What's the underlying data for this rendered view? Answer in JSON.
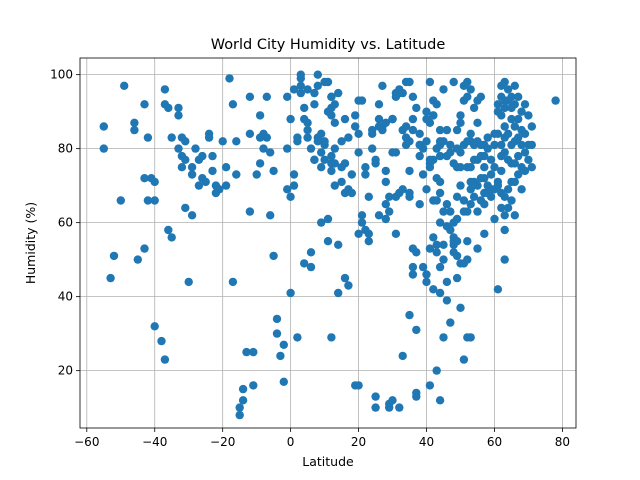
{
  "chart_data": {
    "type": "scatter",
    "title": "World City Humidity vs. Latitude",
    "xlabel": "Latitude",
    "ylabel": "Humidity (%)",
    "xlim": [
      -62,
      84
    ],
    "ylim": [
      4.5,
      104.5
    ],
    "xticks": [
      -60,
      -40,
      -20,
      0,
      20,
      40,
      60,
      80
    ],
    "yticks": [
      20,
      40,
      60,
      80,
      100
    ],
    "grid": true,
    "color": "#1f77b4",
    "points": [
      [
        -55,
        86
      ],
      [
        -55,
        80
      ],
      [
        -53,
        45
      ],
      [
        -52,
        51
      ],
      [
        -50,
        66
      ],
      [
        -49,
        97
      ],
      [
        -46,
        87
      ],
      [
        -46,
        85
      ],
      [
        -45,
        50
      ],
      [
        -43,
        92
      ],
      [
        -43,
        72
      ],
      [
        -43,
        53
      ],
      [
        -42,
        83
      ],
      [
        -42,
        66
      ],
      [
        -41,
        72
      ],
      [
        -40,
        71
      ],
      [
        -40,
        66
      ],
      [
        -40,
        32
      ],
      [
        -38,
        28
      ],
      [
        -37,
        96
      ],
      [
        -37,
        92
      ],
      [
        -37,
        23
      ],
      [
        -36,
        91
      ],
      [
        -36,
        58
      ],
      [
        -35,
        56
      ],
      [
        -35,
        83
      ],
      [
        -33,
        91
      ],
      [
        -33,
        89
      ],
      [
        -33,
        80
      ],
      [
        -32,
        78
      ],
      [
        -32,
        83
      ],
      [
        -32,
        75
      ],
      [
        -31,
        82
      ],
      [
        -31,
        77
      ],
      [
        -31,
        64
      ],
      [
        -30,
        44
      ],
      [
        -29,
        73
      ],
      [
        -29,
        62
      ],
      [
        -29,
        75
      ],
      [
        -28,
        80
      ],
      [
        -27,
        70
      ],
      [
        -27,
        77
      ],
      [
        -26,
        78
      ],
      [
        -26,
        72
      ],
      [
        -25,
        71
      ],
      [
        -24,
        84
      ],
      [
        -24,
        83
      ],
      [
        -23,
        74
      ],
      [
        -23,
        78
      ],
      [
        -22,
        68
      ],
      [
        -22,
        70
      ],
      [
        -21,
        69
      ],
      [
        -20,
        82
      ],
      [
        -19,
        75
      ],
      [
        -19,
        70
      ],
      [
        -18,
        99
      ],
      [
        -17,
        92
      ],
      [
        -17,
        44
      ],
      [
        -16,
        82
      ],
      [
        -16,
        73
      ],
      [
        -15,
        10
      ],
      [
        -15,
        8
      ],
      [
        -14,
        15
      ],
      [
        -14,
        12
      ],
      [
        -13,
        25
      ],
      [
        -12,
        94
      ],
      [
        -12,
        84
      ],
      [
        -12,
        63
      ],
      [
        -11,
        25
      ],
      [
        -11,
        16
      ],
      [
        -10,
        73
      ],
      [
        -9,
        89
      ],
      [
        -9,
        76
      ],
      [
        -9,
        83
      ],
      [
        -8,
        84
      ],
      [
        -8,
        80
      ],
      [
        -7,
        94
      ],
      [
        -7,
        83
      ],
      [
        -6,
        79
      ],
      [
        -6,
        62
      ],
      [
        -5,
        74
      ],
      [
        -5,
        51
      ],
      [
        -4,
        30
      ],
      [
        -4,
        34
      ],
      [
        -3,
        24
      ],
      [
        -2,
        27
      ],
      [
        -2,
        17
      ],
      [
        -1,
        94
      ],
      [
        -1,
        80
      ],
      [
        -1,
        69
      ],
      [
        0,
        88
      ],
      [
        0,
        67
      ],
      [
        0,
        41
      ],
      [
        1,
        73
      ],
      [
        1,
        96
      ],
      [
        1,
        70
      ],
      [
        2,
        83
      ],
      [
        2,
        82
      ],
      [
        2,
        29
      ],
      [
        3,
        99
      ],
      [
        3,
        95
      ],
      [
        3,
        100
      ],
      [
        3,
        97
      ],
      [
        4,
        91
      ],
      [
        4,
        88
      ],
      [
        4,
        49
      ],
      [
        5,
        83
      ],
      [
        5,
        85
      ],
      [
        5,
        96
      ],
      [
        5,
        87
      ],
      [
        6,
        80
      ],
      [
        6,
        48
      ],
      [
        6,
        52
      ],
      [
        7,
        77
      ],
      [
        7,
        92
      ],
      [
        7,
        77
      ],
      [
        7,
        95
      ],
      [
        8,
        97
      ],
      [
        8,
        100
      ],
      [
        8,
        83
      ],
      [
        8,
        82
      ],
      [
        9,
        84
      ],
      [
        9,
        79
      ],
      [
        9,
        75
      ],
      [
        9,
        60
      ],
      [
        10,
        98
      ],
      [
        10,
        81
      ],
      [
        10,
        82
      ],
      [
        10,
        77
      ],
      [
        11,
        98
      ],
      [
        11,
        90
      ],
      [
        11,
        61
      ],
      [
        11,
        55
      ],
      [
        12,
        94
      ],
      [
        12,
        94
      ],
      [
        12,
        89
      ],
      [
        12,
        91
      ],
      [
        12,
        78
      ],
      [
        12,
        76
      ],
      [
        12,
        74
      ],
      [
        12,
        29
      ],
      [
        13,
        92
      ],
      [
        13,
        87
      ],
      [
        13,
        80
      ],
      [
        13,
        76
      ],
      [
        13,
        70
      ],
      [
        14,
        95
      ],
      [
        14,
        54
      ],
      [
        14,
        41
      ],
      [
        15,
        82
      ],
      [
        15,
        71
      ],
      [
        15,
        75
      ],
      [
        16,
        76
      ],
      [
        16,
        68
      ],
      [
        16,
        88
      ],
      [
        16,
        45
      ],
      [
        17,
        69
      ],
      [
        17,
        43
      ],
      [
        17,
        83
      ],
      [
        18,
        73
      ],
      [
        18,
        68
      ],
      [
        19,
        89
      ],
      [
        19,
        16
      ],
      [
        19,
        86
      ],
      [
        20,
        79
      ],
      [
        20,
        57
      ],
      [
        20,
        84
      ],
      [
        20,
        93
      ],
      [
        20,
        16
      ],
      [
        21,
        93
      ],
      [
        21,
        62
      ],
      [
        21,
        60
      ],
      [
        22,
        58
      ],
      [
        22,
        75
      ],
      [
        22,
        73
      ],
      [
        23,
        67
      ],
      [
        23,
        55
      ],
      [
        23,
        57
      ],
      [
        24,
        85
      ],
      [
        24,
        84
      ],
      [
        24,
        80
      ],
      [
        25,
        77
      ],
      [
        25,
        76
      ],
      [
        25,
        13
      ],
      [
        25,
        10
      ],
      [
        26,
        86
      ],
      [
        26,
        92
      ],
      [
        26,
        88
      ],
      [
        26,
        62
      ],
      [
        27,
        85
      ],
      [
        27,
        97
      ],
      [
        27,
        86
      ],
      [
        28,
        61
      ],
      [
        28,
        74
      ],
      [
        28,
        71
      ],
      [
        28,
        65
      ],
      [
        28,
        87
      ],
      [
        29,
        67
      ],
      [
        29,
        63
      ],
      [
        29,
        10
      ],
      [
        29,
        11
      ],
      [
        30,
        88
      ],
      [
        30,
        88
      ],
      [
        30,
        88
      ],
      [
        30,
        79
      ],
      [
        30,
        12
      ],
      [
        31,
        79
      ],
      [
        31,
        57
      ],
      [
        31,
        95
      ],
      [
        31,
        94
      ],
      [
        31,
        67
      ],
      [
        32,
        95
      ],
      [
        32,
        96
      ],
      [
        32,
        68
      ],
      [
        32,
        10
      ],
      [
        33,
        95
      ],
      [
        33,
        85
      ],
      [
        33,
        69
      ],
      [
        33,
        24
      ],
      [
        34,
        98
      ],
      [
        34,
        83
      ],
      [
        34,
        81
      ],
      [
        34,
        86
      ],
      [
        35,
        82
      ],
      [
        35,
        98
      ],
      [
        35,
        74
      ],
      [
        35,
        67
      ],
      [
        35,
        68
      ],
      [
        35,
        35
      ],
      [
        36,
        85
      ],
      [
        36,
        94
      ],
      [
        36,
        88
      ],
      [
        36,
        53
      ],
      [
        36,
        48
      ],
      [
        36,
        46
      ],
      [
        37,
        91
      ],
      [
        37,
        52
      ],
      [
        37,
        31
      ],
      [
        37,
        14
      ],
      [
        37,
        13
      ],
      [
        38,
        84
      ],
      [
        38,
        81
      ],
      [
        38,
        81
      ],
      [
        38,
        78
      ],
      [
        38,
        65
      ],
      [
        39,
        80
      ],
      [
        39,
        73
      ],
      [
        39,
        48
      ],
      [
        40,
        90
      ],
      [
        40,
        82
      ],
      [
        40,
        88
      ],
      [
        40,
        69
      ],
      [
        40,
        46
      ],
      [
        40,
        44
      ],
      [
        41,
        98
      ],
      [
        41,
        87
      ],
      [
        41,
        77
      ],
      [
        41,
        76
      ],
      [
        41,
        75
      ],
      [
        41,
        53
      ],
      [
        41,
        16
      ],
      [
        42,
        93
      ],
      [
        42,
        89
      ],
      [
        42,
        89
      ],
      [
        42,
        77
      ],
      [
        42,
        66
      ],
      [
        42,
        56
      ],
      [
        42,
        42
      ],
      [
        43,
        92
      ],
      [
        43,
        80
      ],
      [
        43,
        72
      ],
      [
        43,
        66
      ],
      [
        43,
        54
      ],
      [
        43,
        52
      ],
      [
        43,
        20
      ],
      [
        44,
        85
      ],
      [
        44,
        82
      ],
      [
        44,
        81
      ],
      [
        44,
        78
      ],
      [
        44,
        71
      ],
      [
        44,
        68
      ],
      [
        44,
        60
      ],
      [
        44,
        48
      ],
      [
        44,
        41
      ],
      [
        44,
        12
      ],
      [
        45,
        96
      ],
      [
        45,
        82
      ],
      [
        45,
        63
      ],
      [
        45,
        54
      ],
      [
        45,
        50
      ],
      [
        45,
        29
      ],
      [
        46,
        85
      ],
      [
        46,
        78
      ],
      [
        46,
        65
      ],
      [
        46,
        59
      ],
      [
        46,
        44
      ],
      [
        46,
        39
      ],
      [
        47,
        81
      ],
      [
        47,
        79
      ],
      [
        47,
        63
      ],
      [
        47,
        58
      ],
      [
        47,
        33
      ],
      [
        48,
        98
      ],
      [
        48,
        76
      ],
      [
        48,
        60
      ],
      [
        48,
        56
      ],
      [
        48,
        55
      ],
      [
        48,
        54
      ],
      [
        48,
        52
      ],
      [
        49,
        85
      ],
      [
        49,
        80
      ],
      [
        49,
        75
      ],
      [
        49,
        67
      ],
      [
        49,
        61
      ],
      [
        49,
        55
      ],
      [
        49,
        51
      ],
      [
        49,
        45
      ],
      [
        50,
        89
      ],
      [
        50,
        87
      ],
      [
        50,
        79
      ],
      [
        50,
        75
      ],
      [
        50,
        70
      ],
      [
        50,
        49
      ],
      [
        50,
        37
      ],
      [
        51,
        97
      ],
      [
        51,
        93
      ],
      [
        51,
        81
      ],
      [
        51,
        66
      ],
      [
        51,
        63
      ],
      [
        51,
        49
      ],
      [
        51,
        23
      ],
      [
        52,
        98
      ],
      [
        52,
        94
      ],
      [
        52,
        82
      ],
      [
        52,
        75
      ],
      [
        52,
        63
      ],
      [
        52,
        55
      ],
      [
        52,
        50
      ],
      [
        52,
        29
      ],
      [
        53,
        96
      ],
      [
        53,
        84
      ],
      [
        53,
        82
      ],
      [
        53,
        75
      ],
      [
        53,
        71
      ],
      [
        53,
        69
      ],
      [
        53,
        65
      ],
      [
        53,
        29
      ],
      [
        54,
        91
      ],
      [
        54,
        81
      ],
      [
        54,
        77
      ],
      [
        54,
        71
      ],
      [
        54,
        67
      ],
      [
        55,
        93
      ],
      [
        55,
        87
      ],
      [
        55,
        82
      ],
      [
        55,
        77
      ],
      [
        55,
        70
      ],
      [
        55,
        63
      ],
      [
        55,
        53
      ],
      [
        56,
        94
      ],
      [
        56,
        81
      ],
      [
        56,
        78
      ],
      [
        56,
        72
      ],
      [
        56,
        66
      ],
      [
        57,
        81
      ],
      [
        57,
        78
      ],
      [
        57,
        75
      ],
      [
        57,
        72
      ],
      [
        57,
        68
      ],
      [
        57,
        65
      ],
      [
        57,
        57
      ],
      [
        58,
        83
      ],
      [
        58,
        80
      ],
      [
        58,
        70
      ],
      [
        58,
        68
      ],
      [
        59,
        77
      ],
      [
        59,
        73
      ],
      [
        59,
        69
      ],
      [
        59,
        67
      ],
      [
        60,
        84
      ],
      [
        60,
        81
      ],
      [
        60,
        75
      ],
      [
        60,
        69
      ],
      [
        60,
        61
      ],
      [
        61,
        42
      ],
      [
        61,
        92
      ],
      [
        61,
        90
      ],
      [
        61,
        84
      ],
      [
        61,
        71
      ],
      [
        61,
        70
      ],
      [
        62,
        97
      ],
      [
        62,
        94
      ],
      [
        62,
        89
      ],
      [
        62,
        81
      ],
      [
        62,
        78
      ],
      [
        62,
        74
      ],
      [
        62,
        68
      ],
      [
        62,
        64
      ],
      [
        63,
        98
      ],
      [
        63,
        93
      ],
      [
        63,
        91
      ],
      [
        63,
        86
      ],
      [
        63,
        83
      ],
      [
        63,
        79
      ],
      [
        63,
        67
      ],
      [
        63,
        62
      ],
      [
        63,
        58
      ],
      [
        63,
        50
      ],
      [
        64,
        96
      ],
      [
        64,
        93
      ],
      [
        64,
        84
      ],
      [
        64,
        77
      ],
      [
        64,
        69
      ],
      [
        64,
        64
      ],
      [
        65,
        94
      ],
      [
        65,
        91
      ],
      [
        65,
        88
      ],
      [
        65,
        81
      ],
      [
        65,
        76
      ],
      [
        65,
        71
      ],
      [
        65,
        66
      ],
      [
        66,
        97
      ],
      [
        66,
        92
      ],
      [
        66,
        86
      ],
      [
        66,
        82
      ],
      [
        66,
        76
      ],
      [
        66,
        71
      ],
      [
        66,
        62
      ],
      [
        67,
        94
      ],
      [
        67,
        88
      ],
      [
        67,
        83
      ],
      [
        67,
        78
      ],
      [
        67,
        73
      ],
      [
        68,
        90
      ],
      [
        68,
        85
      ],
      [
        68,
        81
      ],
      [
        68,
        75
      ],
      [
        68,
        69
      ],
      [
        69,
        92
      ],
      [
        69,
        84
      ],
      [
        69,
        79
      ],
      [
        69,
        74
      ],
      [
        70,
        89
      ],
      [
        70,
        81
      ],
      [
        70,
        77
      ],
      [
        71,
        86
      ],
      [
        71,
        81
      ],
      [
        71,
        75
      ],
      [
        78,
        93
      ]
    ]
  }
}
